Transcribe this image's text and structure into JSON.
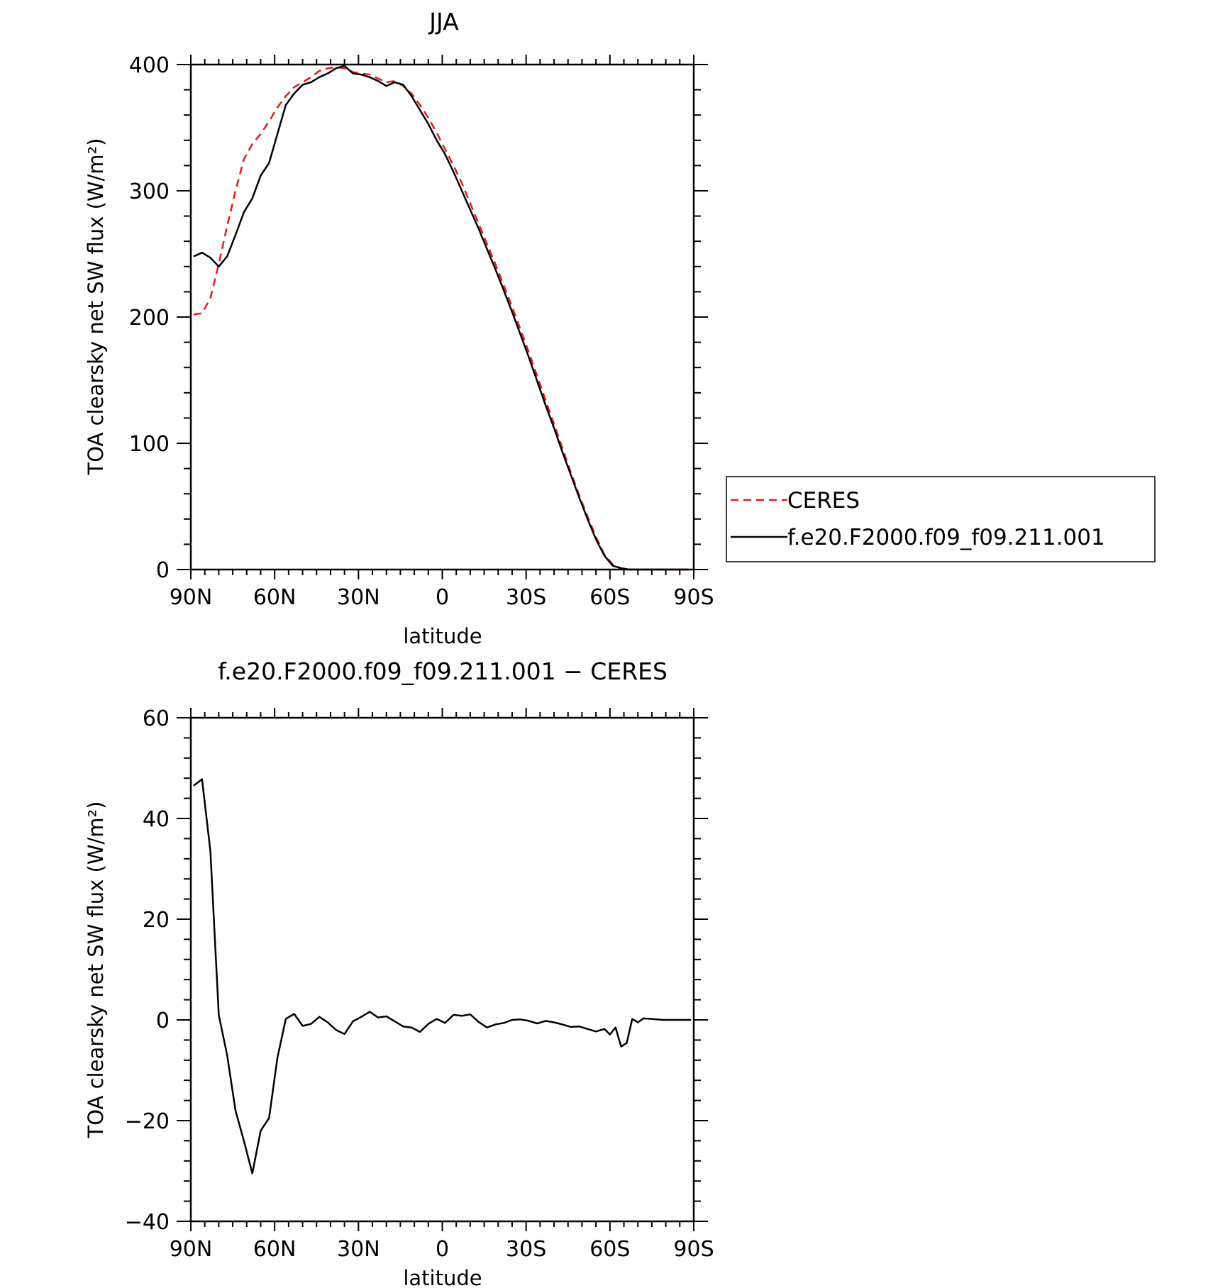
{
  "chart_data": [
    {
      "type": "line",
      "title": "JJA",
      "xlabel": "latitude",
      "ylabel": "TOA clearsky net SW flux (W/m²)",
      "xlim": [
        90,
        -90
      ],
      "ylim": [
        0,
        400
      ],
      "x_ticks": [
        90,
        60,
        30,
        0,
        -30,
        -60,
        -90
      ],
      "x_tick_labels": [
        "90N",
        "60N",
        "30N",
        "0",
        "30S",
        "60S",
        "90S"
      ],
      "y_ticks": [
        0,
        100,
        200,
        300,
        400
      ],
      "y_tick_labels": [
        "0",
        "100",
        "200",
        "300",
        "400"
      ],
      "legend": {
        "placement": "right"
      },
      "series": [
        {
          "name": "CERES",
          "color": "#e41a1c",
          "dash": "dashed",
          "x": [
            89,
            86,
            83,
            80,
            77,
            74,
            71,
            68,
            65,
            62,
            59,
            56,
            53,
            50,
            47,
            44,
            41,
            38,
            35,
            32,
            29,
            26,
            23,
            20,
            17,
            14,
            11,
            8,
            5,
            2,
            -1,
            -4,
            -7,
            -10,
            -13,
            -16,
            -19,
            -22,
            -25,
            -28,
            -31,
            -34,
            -37,
            -40,
            -43,
            -46,
            -49,
            -52,
            -55,
            -58,
            -61,
            -64,
            -67,
            -70,
            -73,
            -76,
            -79,
            -82,
            -85,
            -88
          ],
          "y": [
            202,
            203,
            215,
            242,
            272,
            300,
            325,
            337,
            345,
            355,
            366,
            375,
            382,
            386,
            390,
            395,
            397,
            398,
            397,
            394,
            393,
            392,
            389,
            386,
            387,
            383,
            377,
            368,
            358,
            346,
            333,
            320,
            306,
            290,
            274,
            258,
            242,
            225,
            208,
            190,
            172,
            153,
            134,
            115,
            96,
            77,
            59,
            42,
            26,
            12,
            4,
            1,
            0,
            0,
            0,
            0,
            0,
            0,
            0,
            0
          ]
        },
        {
          "name": "f.e20.F2000.f09_f09.211.001",
          "color": "#000000",
          "dash": "solid",
          "x": [
            89,
            86,
            83,
            80,
            77,
            74,
            71,
            68,
            65,
            62,
            59,
            56,
            53,
            50,
            47,
            44,
            41,
            38,
            35,
            32,
            29,
            26,
            23,
            20,
            17,
            14,
            11,
            8,
            5,
            2,
            -1,
            -4,
            -7,
            -10,
            -13,
            -16,
            -19,
            -22,
            -25,
            -28,
            -31,
            -34,
            -37,
            -40,
            -43,
            -46,
            -49,
            -52,
            -55,
            -58,
            -61,
            -64,
            -67,
            -70,
            -73,
            -76,
            -79,
            -82,
            -85,
            -88
          ],
          "y": [
            248,
            251,
            247,
            240,
            248,
            265,
            283,
            294,
            312,
            322,
            345,
            368,
            377,
            384,
            386,
            390,
            393,
            397,
            399,
            393,
            392,
            390,
            387,
            383,
            386,
            384,
            375,
            364,
            353,
            340,
            329,
            315,
            300,
            285,
            270,
            254,
            238,
            221,
            204,
            186,
            168,
            149,
            130,
            112,
            93,
            75,
            57,
            40,
            24,
            11,
            3,
            1,
            0,
            0,
            0,
            0,
            0,
            0,
            0,
            0
          ]
        }
      ]
    },
    {
      "type": "line",
      "title": "f.e20.F2000.f09_f09.211.001 − CERES",
      "xlabel": "latitude",
      "ylabel": "TOA clearsky net SW flux (W/m²)",
      "xlim": [
        90,
        -90
      ],
      "ylim": [
        -40,
        60
      ],
      "x_ticks": [
        90,
        60,
        30,
        0,
        -30,
        -60,
        -90
      ],
      "x_tick_labels": [
        "90N",
        "60N",
        "30N",
        "0",
        "30S",
        "60S",
        "90S"
      ],
      "y_ticks": [
        -40,
        -20,
        0,
        20,
        40,
        60
      ],
      "y_tick_labels": [
        "−40",
        "−20",
        "0",
        "20",
        "40",
        "60"
      ],
      "series": [
        {
          "color": "#000000",
          "dash": "solid",
          "x": [
            89,
            86,
            83,
            80,
            77,
            74,
            71,
            68,
            65,
            62,
            59,
            56,
            53,
            50,
            47,
            44,
            41,
            38,
            35,
            32,
            29,
            26,
            23,
            20,
            17,
            14,
            11,
            8,
            5,
            2,
            -1,
            -4,
            -7,
            -10,
            -13,
            -16,
            -19,
            -22,
            -25,
            -28,
            -31,
            -34,
            -37,
            -40,
            -43,
            -46,
            -49,
            -52,
            -55,
            -58,
            -60,
            -62,
            -64,
            -66,
            -68,
            -70,
            -72,
            -75,
            -79,
            -83,
            -87,
            -89
          ],
          "y": [
            46.5,
            47.8,
            33.5,
            1,
            -7,
            -18,
            -24,
            -30.5,
            -22,
            -19.5,
            -7.5,
            0.2,
            1.2,
            -1.2,
            -0.8,
            0.6,
            -0.5,
            -2,
            -2.8,
            -0.3,
            0.6,
            1.6,
            0.5,
            0.7,
            -0.3,
            -1.3,
            -1.5,
            -2.4,
            -0.8,
            0.2,
            -0.6,
            1,
            0.8,
            1.1,
            -0.4,
            -1.5,
            -0.9,
            -0.6,
            0,
            0.1,
            -0.2,
            -0.7,
            -0.2,
            -0.5,
            -0.9,
            -1.4,
            -1.3,
            -1.8,
            -2.3,
            -1.8,
            -2.9,
            -1.5,
            -5.3,
            -4.6,
            0.2,
            -0.5,
            0.3,
            0.2,
            0,
            0,
            0,
            0
          ]
        }
      ]
    }
  ]
}
